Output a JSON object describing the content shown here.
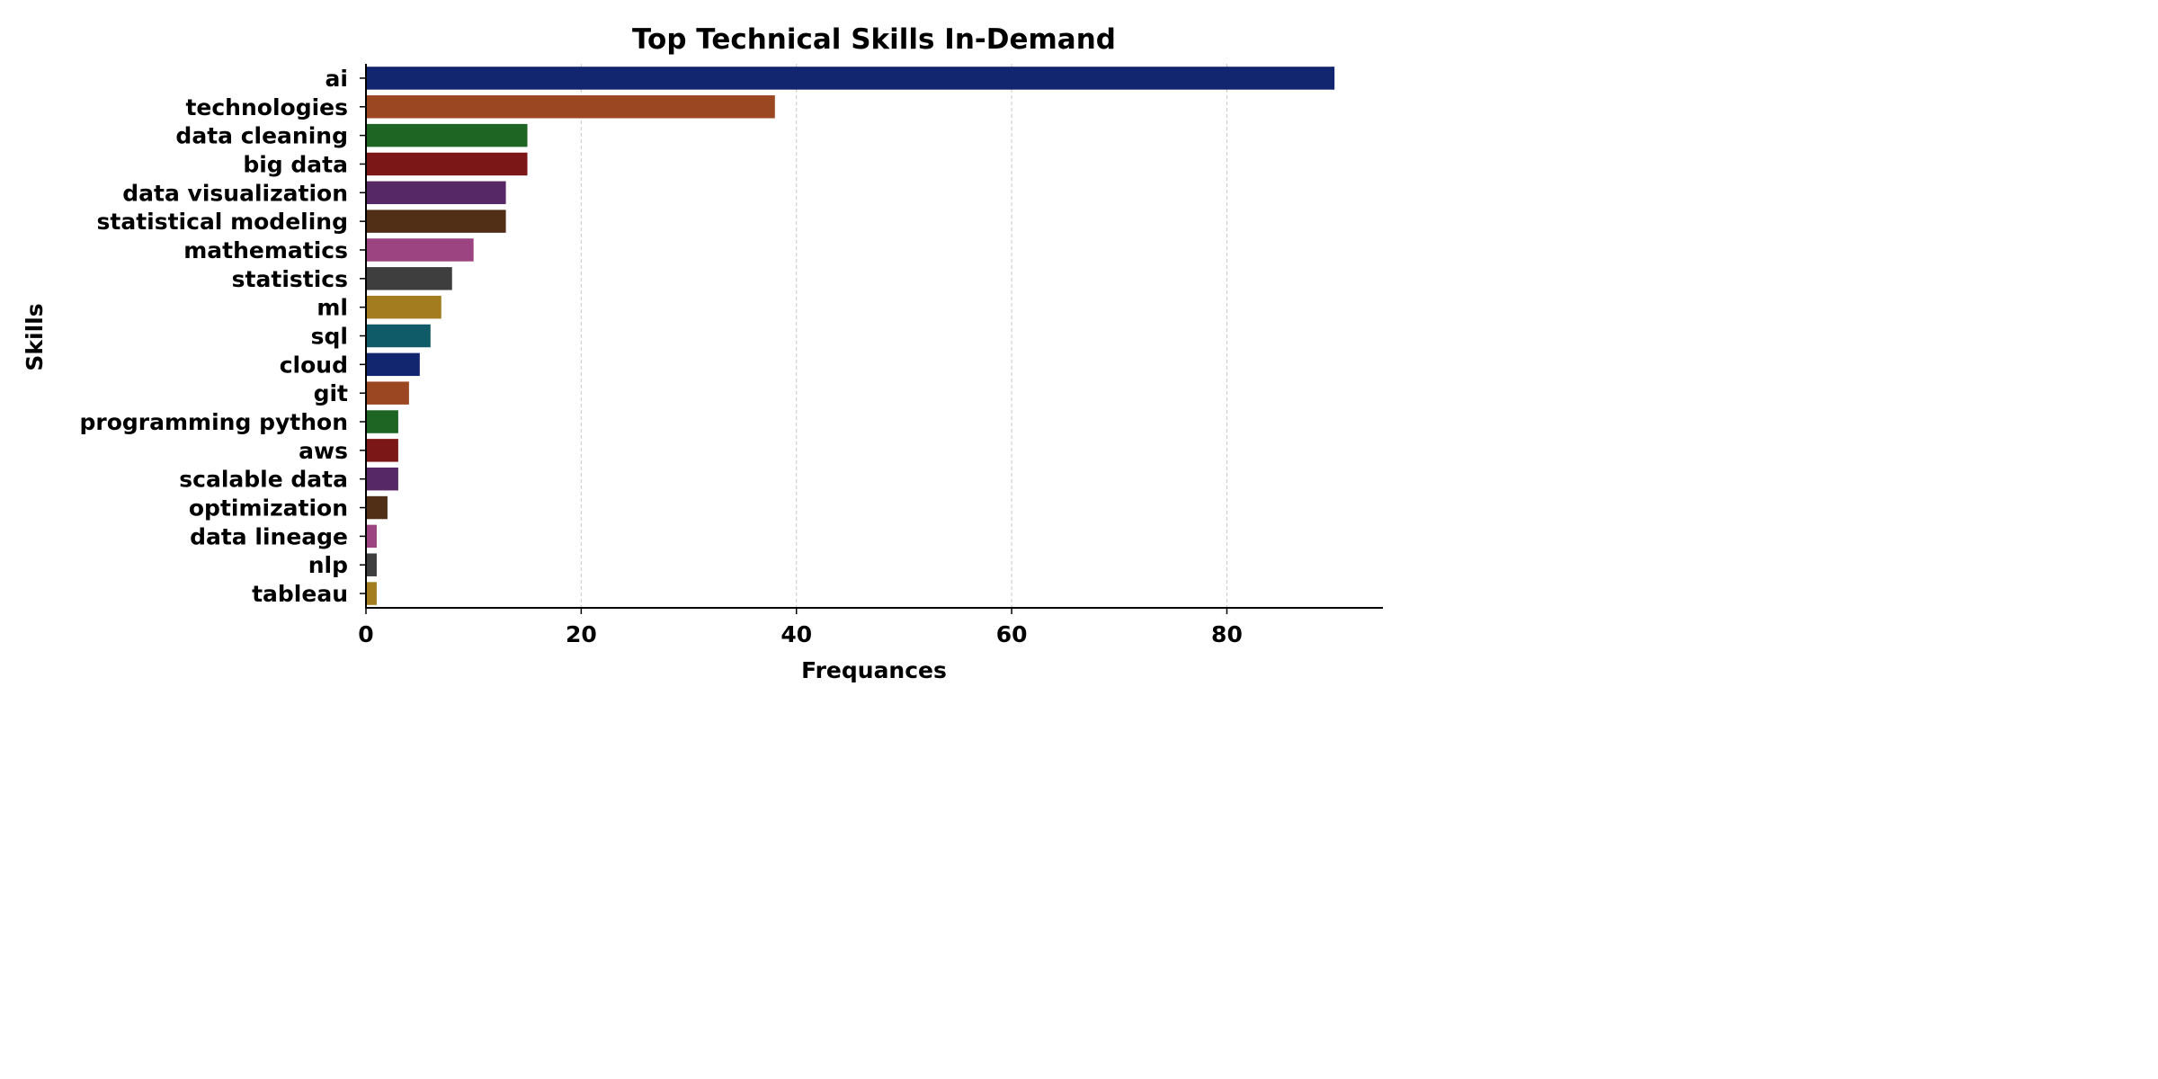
{
  "chart_data": {
    "type": "bar",
    "orientation": "horizontal",
    "title": "Top Technical Skills In-Demand",
    "xlabel": "Frequances",
    "ylabel": "Skills",
    "categories": [
      "ai",
      "technologies",
      "data cleaning",
      "big data",
      "data visualization",
      "statistical modeling",
      "mathematics",
      "statistics",
      "ml",
      "sql",
      "cloud",
      "git",
      "programming python",
      "aws",
      "scalable data",
      "optimization",
      "data lineage",
      "nlp",
      "tableau"
    ],
    "values": [
      90,
      38,
      15,
      15,
      13,
      13,
      10,
      8,
      7,
      6,
      5,
      4,
      3,
      3,
      3,
      2,
      1,
      1,
      1
    ],
    "colors": [
      "#12256f",
      "#9b4721",
      "#1e6422",
      "#7b1716",
      "#572866",
      "#512e16",
      "#9c4482",
      "#3e3e3e",
      "#a27c1f",
      "#0f5b68",
      "#12256f",
      "#9b4721",
      "#1e6422",
      "#7b1716",
      "#572866",
      "#512e16",
      "#9c4482",
      "#3e3e3e",
      "#a27c1f"
    ],
    "xlim": [
      0,
      94.5
    ],
    "xticks": [
      0,
      20,
      40,
      60,
      80
    ],
    "grid": "x-axis dashed",
    "legend": "none"
  }
}
